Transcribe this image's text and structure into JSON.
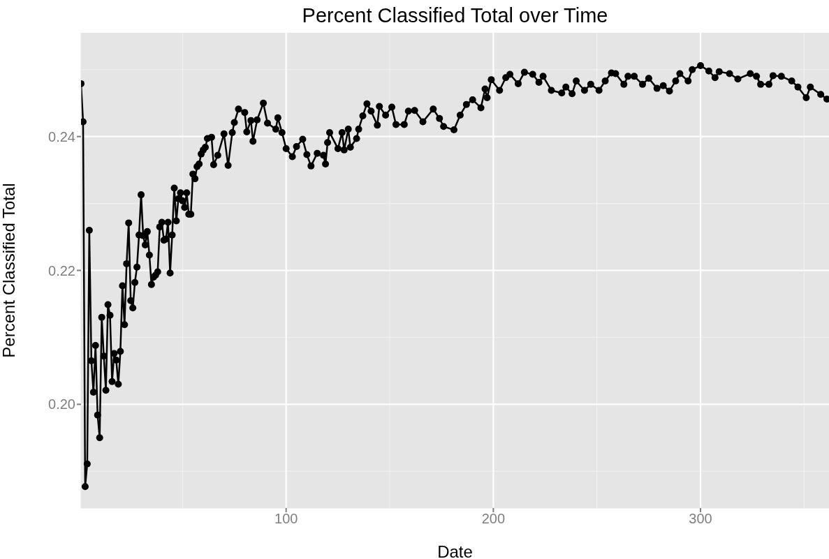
{
  "chart_data": {
    "type": "line",
    "title": "Percent Classified Total over Time",
    "xlabel": "Date",
    "ylabel": "Percent Classified Total",
    "x": [
      1,
      2,
      3,
      4,
      5,
      6,
      7,
      8,
      9,
      10,
      11,
      12,
      13,
      14,
      15,
      16,
      17,
      18,
      19,
      20,
      21,
      22,
      23,
      24,
      25,
      26,
      27,
      28,
      29,
      30,
      31,
      32,
      33,
      34,
      35,
      36,
      37,
      38,
      39,
      40,
      41,
      42,
      43,
      44,
      45,
      46,
      47,
      48,
      49,
      50,
      51,
      52,
      53,
      54,
      55,
      56,
      57,
      58,
      59,
      60,
      61,
      62,
      64,
      65,
      67,
      70,
      72,
      74,
      75,
      77,
      80,
      81,
      83,
      84,
      86,
      89,
      91,
      95,
      96,
      98,
      100,
      103,
      105,
      108,
      110,
      112,
      115,
      118,
      119,
      120,
      121,
      125,
      127,
      128,
      130,
      131,
      134,
      135,
      137,
      139,
      141,
      144,
      145,
      148,
      151,
      153,
      157,
      159,
      162,
      166,
      171,
      174,
      176,
      181,
      184,
      187,
      190,
      194,
      196,
      197,
      199,
      203,
      206,
      208,
      212,
      215,
      219,
      222,
      224,
      228,
      233,
      235,
      238,
      240,
      244,
      247,
      251,
      254,
      257,
      259,
      263,
      265,
      268,
      272,
      275,
      279,
      282,
      285,
      288,
      290,
      294,
      296,
      300,
      304,
      307,
      309,
      314,
      318,
      324,
      327,
      329,
      333,
      335,
      339,
      344,
      347,
      351,
      353,
      358,
      361
    ],
    "series": [
      {
        "color": "#000000",
        "values": [
          0.2479,
          0.2422,
          0.1877,
          0.1911,
          0.226,
          0.2065,
          0.2018,
          0.2088,
          0.1984,
          0.195,
          0.213,
          0.2072,
          0.2021,
          0.2149,
          0.2133,
          0.2034,
          0.2076,
          0.2066,
          0.203,
          0.2079,
          0.2177,
          0.2119,
          0.221,
          0.2271,
          0.2155,
          0.2144,
          0.2182,
          0.2205,
          0.2253,
          0.2313,
          0.2252,
          0.2238,
          0.2258,
          0.2223,
          0.2179,
          0.219,
          0.2193,
          0.2198,
          0.2265,
          0.2272,
          0.2245,
          0.2247,
          0.2272,
          0.2196,
          0.2253,
          0.2323,
          0.2274,
          0.2307,
          0.2316,
          0.2304,
          0.2294,
          0.2316,
          0.2284,
          0.2284,
          0.2344,
          0.2337,
          0.2355,
          0.2359,
          0.2374,
          0.238,
          0.2384,
          0.2397,
          0.2399,
          0.2358,
          0.2372,
          0.2404,
          0.2357,
          0.2406,
          0.2421,
          0.2441,
          0.2436,
          0.2407,
          0.2424,
          0.2393,
          0.2425,
          0.245,
          0.242,
          0.2411,
          0.2428,
          0.2406,
          0.2382,
          0.237,
          0.2385,
          0.2396,
          0.2373,
          0.2356,
          0.2375,
          0.2372,
          0.2359,
          0.2391,
          0.2406,
          0.2382,
          0.2406,
          0.238,
          0.2411,
          0.2384,
          0.2397,
          0.2411,
          0.2431,
          0.2449,
          0.2438,
          0.2417,
          0.2445,
          0.2432,
          0.2444,
          0.2418,
          0.2418,
          0.2438,
          0.2439,
          0.2422,
          0.2441,
          0.2427,
          0.2415,
          0.241,
          0.2432,
          0.2448,
          0.2455,
          0.2443,
          0.2471,
          0.2458,
          0.2485,
          0.2469,
          0.2488,
          0.2493,
          0.2479,
          0.2496,
          0.2493,
          0.2481,
          0.249,
          0.2469,
          0.2465,
          0.2474,
          0.2464,
          0.2483,
          0.2469,
          0.2478,
          0.2469,
          0.2483,
          0.2495,
          0.2494,
          0.2478,
          0.249,
          0.249,
          0.2478,
          0.2487,
          0.2472,
          0.2476,
          0.2468,
          0.2483,
          0.2494,
          0.2483,
          0.25,
          0.2506,
          0.2498,
          0.2488,
          0.2497,
          0.2494,
          0.2486,
          0.2494,
          0.249,
          0.2478,
          0.2478,
          0.2491,
          0.249,
          0.2483,
          0.2474,
          0.2458,
          0.2474,
          0.2463,
          0.2456
        ]
      }
    ],
    "xlim": [
      1,
      362
    ],
    "xticks": [
      100,
      200,
      300
    ],
    "ylim": [
      0.1845,
      0.2555
    ],
    "yticks": [
      {
        "value": 0.2,
        "label": "0.20"
      },
      0.22,
      0.24
    ],
    "grid": true,
    "marker": "circle",
    "line_style": "solid"
  }
}
